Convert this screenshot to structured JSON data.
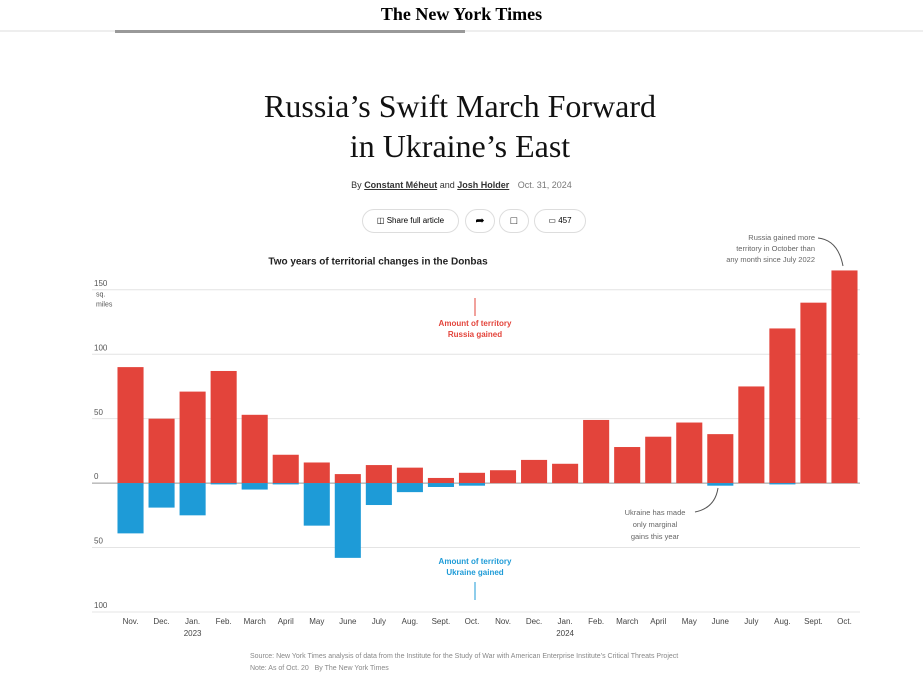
{
  "header": {
    "masthead": "The New York Times"
  },
  "article": {
    "title": "Russia’s Swift March Forward in Ukraine’s East",
    "byline": {
      "prefix": "By",
      "author1": "Constant Méheut",
      "joiner": "and",
      "author2": "Josh Holder",
      "date": "Oct. 31, 2024"
    },
    "share": "Share full article",
    "comments": "457"
  },
  "chart_data": {
    "type": "bar",
    "title": "Two years of territorial changes in the Donbas",
    "unit_label": [
      "sq.",
      "miles"
    ],
    "categories": [
      "Nov.",
      "Dec.",
      "Jan.",
      "Feb.",
      "March",
      "April",
      "May",
      "June",
      "July",
      "Aug.",
      "Sept.",
      "Oct.",
      "Nov.",
      "Dec.",
      "Jan.",
      "Feb.",
      "March",
      "April",
      "May",
      "June",
      "July",
      "Aug.",
      "Sept.",
      "Oct."
    ],
    "category_years": [
      null,
      null,
      "2023",
      null,
      null,
      null,
      null,
      null,
      null,
      null,
      null,
      null,
      null,
      null,
      "2024",
      null,
      null,
      null,
      null,
      null,
      null,
      null,
      null,
      null
    ],
    "series": [
      {
        "name": "Amount of territory Russia gained",
        "color": "#e3443b",
        "values": [
          90,
          50,
          71,
          87,
          53,
          22,
          16,
          7,
          14,
          12,
          4,
          8,
          10,
          18,
          15,
          49,
          28,
          36,
          47,
          38,
          75,
          120,
          140,
          165
        ]
      },
      {
        "name": "Amount of territory Ukraine gained",
        "color": "#1e9bd7",
        "values": [
          -39,
          -19,
          -25,
          -1,
          -5,
          -1,
          -33,
          -58,
          -17,
          -7,
          -3,
          -2,
          0,
          0,
          0,
          0,
          0,
          0,
          0,
          -2,
          0,
          -1,
          0,
          0
        ]
      }
    ],
    "ylim": [
      -100,
      170
    ],
    "yticks": [
      150,
      100,
      50,
      0,
      {
        "value": -50,
        "label": "50"
      },
      {
        "value": -100,
        "label": "100"
      }
    ],
    "grid": true,
    "annotations": [
      [
        "Russia gained more",
        "territory in October than",
        "any month since July 2022"
      ],
      [
        "Ukraine has made",
        "only marginal",
        "gains this year"
      ]
    ],
    "source": "Source: New York Times analysis of data from the Institute for the Study of War with American Enterprise Institute’s Critical Threats Project",
    "note": "Note: As of Oct. 20",
    "credit": "By The New York Times"
  }
}
